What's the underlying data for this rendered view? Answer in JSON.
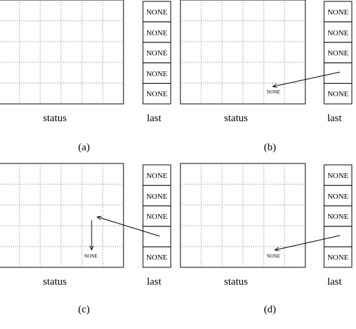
{
  "status_label": "status",
  "last_label": "last",
  "panels": [
    {
      "caption": "(a)",
      "cells": [
        "NONE",
        "NONE",
        "NONE",
        "NONE",
        "NONE"
      ]
    },
    {
      "caption": "(b)",
      "cells": [
        "NONE",
        "NONE",
        "NONE",
        "",
        "NONE"
      ],
      "grid_text": "NONE"
    },
    {
      "caption": "(c)",
      "cells": [
        "NONE",
        "NONE",
        "NONE",
        "",
        "NONE"
      ],
      "grid_text": "NONE"
    },
    {
      "caption": "(d)",
      "cells": [
        "NONE",
        "NONE",
        "NONE",
        "",
        "NONE"
      ],
      "grid_text": "NONE"
    }
  ]
}
